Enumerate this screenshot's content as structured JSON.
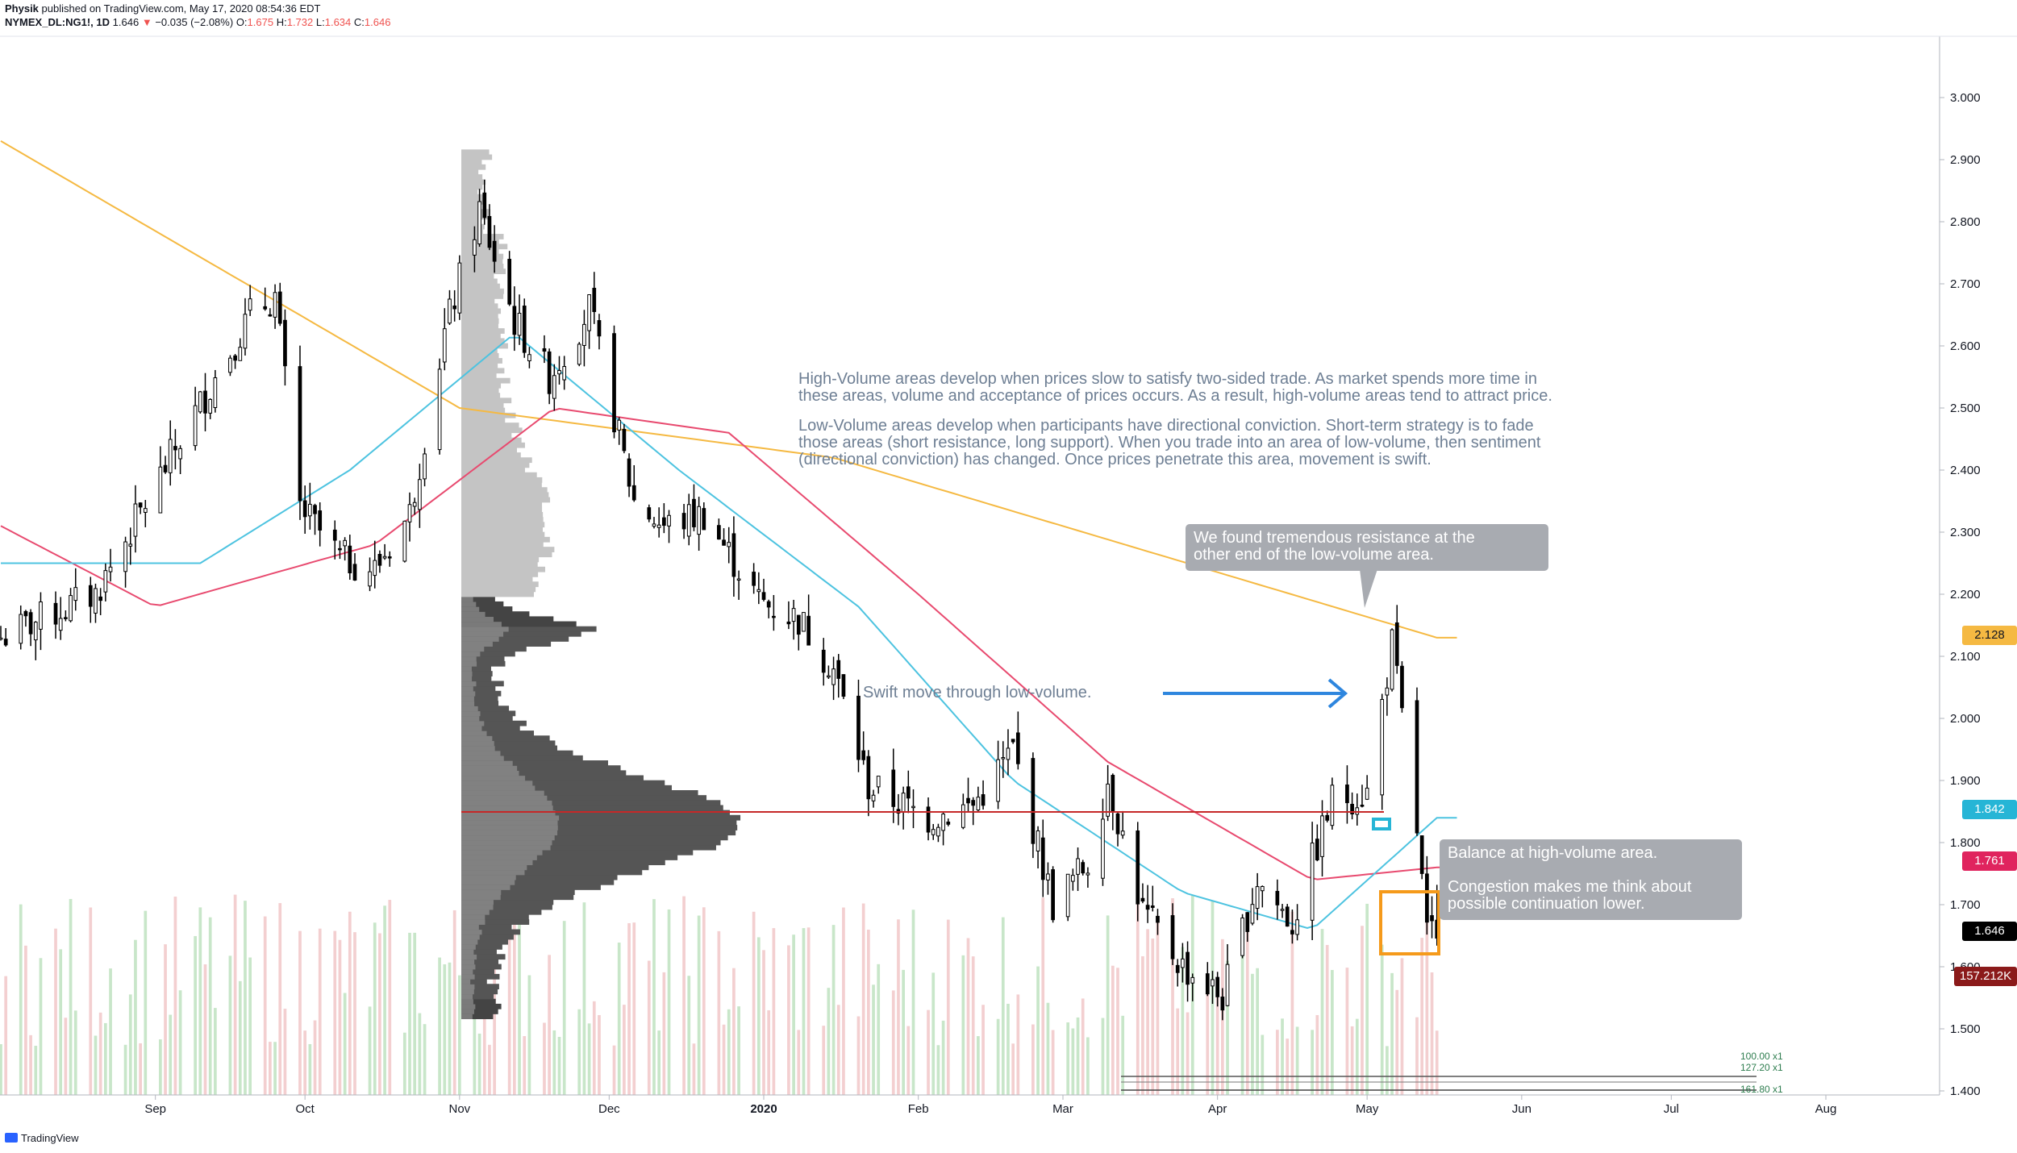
{
  "header": {
    "publisher": "Physik",
    "published_text": "published on TradingView.com, May 17, 2020 08:54:36 EDT",
    "symbol": "NYMEX_DL:NG1!, 1D",
    "last": "1.646",
    "change": "−0.035 (−2.08%)",
    "o_label": "O:",
    "o_value": "1.675",
    "h_label": "H:",
    "h_value": "1.732",
    "l_label": "L:",
    "l_value": "1.634",
    "c_label": "C:",
    "c_value": "1.646"
  },
  "notes": {
    "high_volume": "High-Volume areas develop when prices slow to satisfy two-sided trade. As market spends more time in\nthese areas, volume and acceptance of prices occurs. As a result, high-volume areas tend to attract price.",
    "low_volume": "Low-Volume areas develop when participants have directional conviction. Short-term strategy is to fade\nthose areas (short resistance, long support). When you trade into an area of low-volume, then sentiment\n(directional conviction) has changed. Once prices penetrate this area, movement is swift.",
    "resistance": "We found tremendous resistance at the\nother end of the low-volume area.",
    "swift": "Swift move through low-volume.",
    "balance": "Balance at high-volume area.\n\nCongestion makes me think about\npossible continuation lower."
  },
  "price_labels": {
    "ma200": "2.128",
    "ma20": "1.842",
    "ma50": "1.761",
    "last": "1.646",
    "volume": "157.212K"
  },
  "fib_labels": [
    "100.00 x1",
    "127.20 x1",
    "161.80 x1"
  ],
  "branding": "TradingView",
  "colors": {
    "up_volume": "#c8e6c9",
    "down_volume": "#f3cfd0",
    "ma20": "#4dc3e0",
    "ma50": "#e84a6f",
    "ma200": "#f5b942",
    "poc_line": "#c62828",
    "arrow": "#2e86de",
    "box": "#f59a1b"
  },
  "chart_data": {
    "type": "candlestick",
    "symbol": "NYMEX_DL:NG1!",
    "interval": "1D",
    "y_axis_ticks": [
      "3.000",
      "2.900",
      "2.800",
      "2.700",
      "2.600",
      "2.500",
      "2.400",
      "2.300",
      "2.200",
      "2.100",
      "2.000",
      "1.900",
      "1.800",
      "1.700",
      "1.600",
      "1.500",
      "1.400"
    ],
    "x_axis_ticks": [
      "Sep",
      "Oct",
      "Nov",
      "Dec",
      "2020",
      "Feb",
      "Mar",
      "Apr",
      "May",
      "Jun",
      "Jul",
      "Aug"
    ],
    "ylim": [
      1.38,
      3.08
    ],
    "last_price": 1.646,
    "ohlc_last": {
      "open": 1.675,
      "high": 1.732,
      "low": 1.634,
      "close": 1.646
    },
    "moving_averages": [
      {
        "label": "2.128",
        "color": "#f5b942"
      },
      {
        "label": "1.842",
        "color": "#4dc3e0"
      },
      {
        "label": "1.761",
        "color": "#e84a6f"
      }
    ],
    "point_of_control": 1.834,
    "volume_last": "157.212K",
    "close_path": [
      {
        "date": "2019-08-01",
        "close": 2.13
      },
      {
        "date": "2019-08-20",
        "close": 2.2
      },
      {
        "date": "2019-09-04",
        "close": 2.42
      },
      {
        "date": "2019-09-20",
        "close": 2.65
      },
      {
        "date": "2019-09-25",
        "close": 2.68
      },
      {
        "date": "2019-09-30",
        "close": 2.34
      },
      {
        "date": "2019-10-08",
        "close": 2.26
      },
      {
        "date": "2019-10-15",
        "close": 2.24
      },
      {
        "date": "2019-10-22",
        "close": 2.33
      },
      {
        "date": "2019-10-29",
        "close": 2.62
      },
      {
        "date": "2019-11-05",
        "close": 2.82
      },
      {
        "date": "2019-11-12",
        "close": 2.64
      },
      {
        "date": "2019-11-19",
        "close": 2.55
      },
      {
        "date": "2019-11-27",
        "close": 2.66
      },
      {
        "date": "2019-12-06",
        "close": 2.35
      },
      {
        "date": "2019-12-12",
        "close": 2.31
      },
      {
        "date": "2019-12-20",
        "close": 2.33
      },
      {
        "date": "2019-12-31",
        "close": 2.19
      },
      {
        "date": "2020-01-08",
        "close": 2.16
      },
      {
        "date": "2020-01-15",
        "close": 2.08
      },
      {
        "date": "2020-01-22",
        "close": 1.89
      },
      {
        "date": "2020-02-03",
        "close": 1.84
      },
      {
        "date": "2020-02-12",
        "close": 1.86
      },
      {
        "date": "2020-02-20",
        "close": 1.95
      },
      {
        "date": "2020-02-28",
        "close": 1.7
      },
      {
        "date": "2020-03-06",
        "close": 1.77
      },
      {
        "date": "2020-03-10",
        "close": 1.9
      },
      {
        "date": "2020-03-17",
        "close": 1.69
      },
      {
        "date": "2020-03-25",
        "close": 1.6
      },
      {
        "date": "2020-04-02",
        "close": 1.55
      },
      {
        "date": "2020-04-09",
        "close": 1.74
      },
      {
        "date": "2020-04-16",
        "close": 1.67
      },
      {
        "date": "2020-04-24",
        "close": 1.87
      },
      {
        "date": "2020-05-01",
        "close": 1.88
      },
      {
        "date": "2020-05-06",
        "close": 2.12
      },
      {
        "date": "2020-05-11",
        "close": 1.82
      },
      {
        "date": "2020-05-13",
        "close": 1.65
      },
      {
        "date": "2020-05-15",
        "close": 1.646
      }
    ],
    "ma200_path": [
      {
        "date": "2019-08-01",
        "value": 2.93
      },
      {
        "date": "2019-11-01",
        "value": 2.5
      },
      {
        "date": "2020-01-15",
        "value": 2.42
      },
      {
        "date": "2020-05-15",
        "value": 2.13
      }
    ],
    "ma50_path": [
      {
        "date": "2019-08-01",
        "value": 2.31
      },
      {
        "date": "2019-09-01",
        "value": 2.18
      },
      {
        "date": "2019-10-15",
        "value": 2.28
      },
      {
        "date": "2019-11-20",
        "value": 2.5
      },
      {
        "date": "2019-12-25",
        "value": 2.46
      },
      {
        "date": "2020-02-01",
        "value": 2.2
      },
      {
        "date": "2020-03-10",
        "value": 1.93
      },
      {
        "date": "2020-04-20",
        "value": 1.74
      },
      {
        "date": "2020-05-15",
        "value": 1.76
      }
    ],
    "ma20_path": [
      {
        "date": "2019-08-01",
        "value": 2.25
      },
      {
        "date": "2019-09-10",
        "value": 2.25
      },
      {
        "date": "2019-10-10",
        "value": 2.4
      },
      {
        "date": "2019-11-12",
        "value": 2.62
      },
      {
        "date": "2019-12-15",
        "value": 2.4
      },
      {
        "date": "2020-01-20",
        "value": 2.18
      },
      {
        "date": "2020-02-20",
        "value": 1.9
      },
      {
        "date": "2020-03-25",
        "value": 1.72
      },
      {
        "date": "2020-04-20",
        "value": 1.66
      },
      {
        "date": "2020-05-15",
        "value": 1.84
      }
    ]
  }
}
